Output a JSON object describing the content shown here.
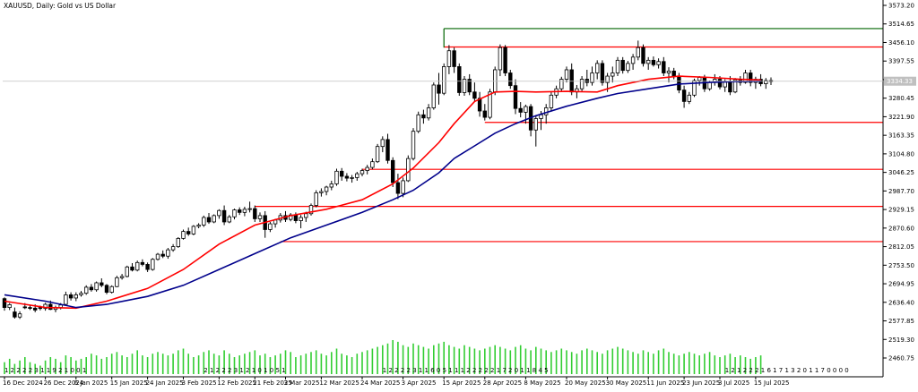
{
  "chart_data": {
    "type": "candlestick",
    "title": "XAUUSD, Daily:  Gold vs US Dollar",
    "current_price_label": "3334.33",
    "y_ticks": [
      "3573.20",
      "3514.65",
      "3456.10",
      "3397.55",
      "3339.00",
      "3280.45",
      "3221.90",
      "3163.35",
      "3104.80",
      "3046.25",
      "2987.70",
      "2929.15",
      "2870.60",
      "2812.05",
      "2753.50",
      "2694.95",
      "2636.40",
      "2577.85",
      "2519.30",
      "2460.75"
    ],
    "ylim": [
      2460.75,
      3573.2
    ],
    "x_labels": [
      {
        "label": "16 Dec 2024",
        "i": 0
      },
      {
        "label": "26 Dec 2024",
        "i": 8
      },
      {
        "label": "6 Jan 2025",
        "i": 14
      },
      {
        "label": "15 Jan 2025",
        "i": 21
      },
      {
        "label": "24 Jan 2025",
        "i": 28
      },
      {
        "label": "3 Feb 2025",
        "i": 35
      },
      {
        "label": "12 Feb 2025",
        "i": 42
      },
      {
        "label": "21 Feb 2025",
        "i": 49
      },
      {
        "label": "3 Mar 2025",
        "i": 55
      },
      {
        "label": "12 Mar 2025",
        "i": 62
      },
      {
        "label": "24 Mar 2025",
        "i": 70
      },
      {
        "label": "3 Apr 2025",
        "i": 78
      },
      {
        "label": "15 Apr 2025",
        "i": 86
      },
      {
        "label": "28 Apr 2025",
        "i": 94
      },
      {
        "label": "8 May 2025",
        "i": 102
      },
      {
        "label": "20 May 2025",
        "i": 110
      },
      {
        "label": "30 May 2025",
        "i": 118
      },
      {
        "label": "11 Jun 2025",
        "i": 126
      },
      {
        "label": "23 Jun 2025",
        "i": 133
      },
      {
        "label": "3 Jul 2025",
        "i": 140
      },
      {
        "label": "15 Jul 2025",
        "i": 147
      }
    ],
    "candles_ohlc": [
      [
        2648,
        2652,
        2610,
        2620
      ],
      [
        2620,
        2634,
        2612,
        2629
      ],
      [
        2606,
        2620,
        2585,
        2590
      ],
      [
        2590,
        2608,
        2584,
        2600
      ],
      [
        2622,
        2634,
        2615,
        2620
      ],
      [
        2620,
        2628,
        2612,
        2618
      ],
      [
        2618,
        2630,
        2605,
        2612
      ],
      [
        2620,
        2626,
        2611,
        2617
      ],
      [
        2617,
        2635,
        2610,
        2630
      ],
      [
        2630,
        2642,
        2612,
        2614
      ],
      [
        2614,
        2626,
        2605,
        2620
      ],
      [
        2620,
        2634,
        2614,
        2628
      ],
      [
        2630,
        2670,
        2626,
        2660
      ],
      [
        2660,
        2668,
        2642,
        2650
      ],
      [
        2650,
        2668,
        2640,
        2660
      ],
      [
        2660,
        2672,
        2654,
        2665
      ],
      [
        2665,
        2690,
        2660,
        2684
      ],
      [
        2684,
        2694,
        2670,
        2676
      ],
      [
        2676,
        2702,
        2670,
        2698
      ],
      [
        2698,
        2712,
        2684,
        2690
      ],
      [
        2690,
        2694,
        2662,
        2668
      ],
      [
        2668,
        2690,
        2664,
        2686
      ],
      [
        2686,
        2720,
        2684,
        2714
      ],
      [
        2714,
        2726,
        2708,
        2718
      ],
      [
        2718,
        2752,
        2715,
        2748
      ],
      [
        2748,
        2760,
        2734,
        2738
      ],
      [
        2738,
        2768,
        2734,
        2762
      ],
      [
        2762,
        2772,
        2750,
        2756
      ],
      [
        2756,
        2762,
        2732,
        2740
      ],
      [
        2740,
        2776,
        2736,
        2772
      ],
      [
        2772,
        2792,
        2768,
        2788
      ],
      [
        2788,
        2800,
        2776,
        2782
      ],
      [
        2782,
        2808,
        2774,
        2802
      ],
      [
        2802,
        2820,
        2796,
        2812
      ],
      [
        2812,
        2842,
        2808,
        2838
      ],
      [
        2838,
        2866,
        2834,
        2860
      ],
      [
        2860,
        2872,
        2846,
        2852
      ],
      [
        2852,
        2880,
        2848,
        2876
      ],
      [
        2876,
        2886,
        2870,
        2880
      ],
      [
        2880,
        2910,
        2874,
        2904
      ],
      [
        2904,
        2918,
        2884,
        2890
      ],
      [
        2890,
        2914,
        2886,
        2910
      ],
      [
        2910,
        2930,
        2900,
        2926
      ],
      [
        2926,
        2942,
        2880,
        2890
      ],
      [
        2890,
        2912,
        2886,
        2906
      ],
      [
        2906,
        2932,
        2898,
        2928
      ],
      [
        2928,
        2936,
        2912,
        2920
      ],
      [
        2920,
        2938,
        2908,
        2930
      ],
      [
        2930,
        2954,
        2920,
        2932
      ],
      [
        2932,
        2942,
        2890,
        2900
      ],
      [
        2900,
        2920,
        2890,
        2910
      ],
      [
        2910,
        2924,
        2840,
        2866
      ],
      [
        2866,
        2890,
        2858,
        2884
      ],
      [
        2884,
        2900,
        2872,
        2896
      ],
      [
        2896,
        2918,
        2888,
        2910
      ],
      [
        2910,
        2924,
        2890,
        2898
      ],
      [
        2898,
        2918,
        2892,
        2912
      ],
      [
        2912,
        2920,
        2886,
        2894
      ],
      [
        2894,
        2912,
        2870,
        2904
      ],
      [
        2904,
        2922,
        2890,
        2916
      ],
      [
        2916,
        2948,
        2910,
        2942
      ],
      [
        2942,
        2990,
        2936,
        2982
      ],
      [
        2982,
        2996,
        2970,
        2986
      ],
      [
        2986,
        3004,
        2974,
        3000
      ],
      [
        3000,
        3020,
        2990,
        3010
      ],
      [
        3010,
        3058,
        3004,
        3050
      ],
      [
        3050,
        3060,
        3020,
        3034
      ],
      [
        3034,
        3044,
        3018,
        3028
      ],
      [
        3028,
        3038,
        3014,
        3030
      ],
      [
        3030,
        3048,
        3020,
        3042
      ],
      [
        3042,
        3058,
        3034,
        3052
      ],
      [
        3052,
        3070,
        3040,
        3062
      ],
      [
        3062,
        3090,
        3056,
        3080
      ],
      [
        3080,
        3136,
        3076,
        3128
      ],
      [
        3128,
        3160,
        3110,
        3150
      ],
      [
        3150,
        3168,
        3074,
        3084
      ],
      [
        3084,
        3094,
        3000,
        3014
      ],
      [
        3014,
        3042,
        2962,
        2980
      ],
      [
        2980,
        3030,
        2968,
        3020
      ],
      [
        3020,
        3100,
        3016,
        3090
      ],
      [
        3090,
        3186,
        3084,
        3176
      ],
      [
        3176,
        3238,
        3170,
        3228
      ],
      [
        3228,
        3244,
        3200,
        3218
      ],
      [
        3218,
        3262,
        3210,
        3250
      ],
      [
        3250,
        3330,
        3244,
        3322
      ],
      [
        3322,
        3360,
        3260,
        3296
      ],
      [
        3296,
        3390,
        3290,
        3380
      ],
      [
        3380,
        3448,
        3356,
        3430
      ],
      [
        3430,
        3440,
        3360,
        3380
      ],
      [
        3380,
        3390,
        3288,
        3298
      ],
      [
        3298,
        3350,
        3288,
        3340
      ],
      [
        3340,
        3356,
        3290,
        3300
      ],
      [
        3300,
        3330,
        3270,
        3280
      ],
      [
        3280,
        3300,
        3222,
        3240
      ],
      [
        3240,
        3262,
        3210,
        3220
      ],
      [
        3220,
        3310,
        3214,
        3300
      ],
      [
        3300,
        3380,
        3290,
        3370
      ],
      [
        3370,
        3450,
        3350,
        3440
      ],
      [
        3440,
        3448,
        3350,
        3360
      ],
      [
        3360,
        3370,
        3310,
        3320
      ],
      [
        3320,
        3340,
        3230,
        3248
      ],
      [
        3248,
        3268,
        3220,
        3236
      ],
      [
        3236,
        3260,
        3200,
        3254
      ],
      [
        3254,
        3262,
        3160,
        3180
      ],
      [
        3180,
        3226,
        3128,
        3216
      ],
      [
        3216,
        3240,
        3180,
        3228
      ],
      [
        3228,
        3262,
        3200,
        3250
      ],
      [
        3250,
        3300,
        3238,
        3290
      ],
      [
        3290,
        3320,
        3280,
        3310
      ],
      [
        3310,
        3348,
        3300,
        3340
      ],
      [
        3340,
        3380,
        3330,
        3370
      ],
      [
        3370,
        3390,
        3290,
        3300
      ],
      [
        3300,
        3322,
        3280,
        3310
      ],
      [
        3310,
        3350,
        3300,
        3340
      ],
      [
        3340,
        3370,
        3318,
        3330
      ],
      [
        3330,
        3380,
        3320,
        3360
      ],
      [
        3360,
        3400,
        3340,
        3390
      ],
      [
        3390,
        3400,
        3320,
        3330
      ],
      [
        3330,
        3360,
        3300,
        3350
      ],
      [
        3350,
        3380,
        3330,
        3360
      ],
      [
        3360,
        3410,
        3350,
        3400
      ],
      [
        3400,
        3410,
        3358,
        3368
      ],
      [
        3368,
        3398,
        3360,
        3390
      ],
      [
        3390,
        3420,
        3370,
        3410
      ],
      [
        3410,
        3462,
        3400,
        3440
      ],
      [
        3440,
        3450,
        3380,
        3390
      ],
      [
        3390,
        3410,
        3370,
        3400
      ],
      [
        3400,
        3412,
        3380,
        3386
      ],
      [
        3386,
        3406,
        3374,
        3396
      ],
      [
        3396,
        3410,
        3350,
        3360
      ],
      [
        3360,
        3378,
        3330,
        3366
      ],
      [
        3366,
        3376,
        3340,
        3350
      ],
      [
        3350,
        3360,
        3296,
        3306
      ],
      [
        3306,
        3320,
        3250,
        3270
      ],
      [
        3270,
        3300,
        3262,
        3290
      ],
      [
        3290,
        3342,
        3284,
        3336
      ],
      [
        3336,
        3350,
        3320,
        3346
      ],
      [
        3346,
        3354,
        3300,
        3310
      ],
      [
        3310,
        3336,
        3304,
        3330
      ],
      [
        3330,
        3356,
        3320,
        3340
      ],
      [
        3340,
        3350,
        3308,
        3316
      ],
      [
        3316,
        3340,
        3300,
        3334
      ],
      [
        3334,
        3350,
        3290,
        3300
      ],
      [
        3300,
        3344,
        3296,
        3338
      ],
      [
        3338,
        3350,
        3320,
        3330
      ],
      [
        3330,
        3370,
        3326,
        3360
      ],
      [
        3360,
        3370,
        3318,
        3330
      ],
      [
        3330,
        3348,
        3310,
        3340
      ],
      [
        3340,
        3356,
        3318,
        3326
      ],
      [
        3326,
        3344,
        3310,
        3336
      ],
      [
        3336,
        3346,
        3322,
        3334
      ]
    ],
    "series": [
      {
        "name": "",
        "color": "#ff0000",
        "x": [
          0,
          8,
          14,
          20,
          28,
          35,
          42,
          49,
          56,
          63,
          70,
          76,
          80,
          85,
          88,
          92,
          96,
          100,
          104,
          110,
          116,
          120,
          126,
          132,
          138,
          144,
          148
        ],
        "values": [
          2640,
          2620,
          2618,
          2640,
          2680,
          2740,
          2820,
          2880,
          2910,
          2930,
          2960,
          3010,
          3060,
          3140,
          3200,
          3270,
          3300,
          3302,
          3300,
          3302,
          3300,
          3320,
          3340,
          3350,
          3346,
          3340,
          3338
        ]
      },
      {
        "name": "",
        "color": "#00008b",
        "x": [
          0,
          8,
          14,
          20,
          28,
          35,
          42,
          49,
          56,
          63,
          70,
          76,
          80,
          85,
          88,
          92,
          96,
          100,
          104,
          110,
          116,
          120,
          126,
          132,
          138,
          144,
          148
        ],
        "values": [
          2660,
          2640,
          2620,
          2630,
          2655,
          2690,
          2740,
          2790,
          2840,
          2880,
          2920,
          2960,
          2990,
          3045,
          3090,
          3130,
          3170,
          3200,
          3225,
          3255,
          3280,
          3295,
          3310,
          3325,
          3330,
          3333,
          3334
        ]
      }
    ],
    "hlines": [
      {
        "color": "#ff0000",
        "price": 3442,
        "start_i": 86
      },
      {
        "color": "#ff0000",
        "price": 3204,
        "start_i": 94
      },
      {
        "color": "#ff0000",
        "price": 3056,
        "start_i": 70
      },
      {
        "color": "#ff0000",
        "price": 2939,
        "start_i": 49
      },
      {
        "color": "#ff0000",
        "price": 2828,
        "start_i": 54
      },
      {
        "color": "#006400",
        "price": 3500,
        "start_i": 86,
        "vertical_to": 3440
      }
    ],
    "volume_color": "#32cd32",
    "volumes": [
      0.35,
      0.45,
      0.3,
      0.4,
      0.5,
      0.35,
      0.3,
      0.25,
      0.4,
      0.5,
      0.45,
      0.35,
      0.55,
      0.5,
      0.4,
      0.45,
      0.5,
      0.6,
      0.55,
      0.45,
      0.5,
      0.6,
      0.65,
      0.55,
      0.5,
      0.6,
      0.7,
      0.55,
      0.5,
      0.6,
      0.65,
      0.6,
      0.55,
      0.6,
      0.7,
      0.75,
      0.6,
      0.5,
      0.55,
      0.65,
      0.7,
      0.6,
      0.55,
      0.7,
      0.6,
      0.5,
      0.55,
      0.6,
      0.65,
      0.7,
      0.55,
      0.6,
      0.5,
      0.55,
      0.6,
      0.7,
      0.65,
      0.5,
      0.55,
      0.6,
      0.65,
      0.7,
      0.6,
      0.55,
      0.65,
      0.75,
      0.6,
      0.55,
      0.5,
      0.6,
      0.65,
      0.7,
      0.75,
      0.8,
      0.85,
      0.9,
      1.0,
      0.95,
      0.85,
      0.8,
      0.9,
      0.85,
      0.8,
      0.75,
      0.85,
      0.9,
      0.95,
      0.85,
      0.8,
      0.75,
      0.85,
      0.8,
      0.75,
      0.7,
      0.75,
      0.8,
      0.85,
      0.8,
      0.75,
      0.7,
      0.8,
      0.85,
      0.75,
      0.7,
      0.8,
      0.75,
      0.7,
      0.65,
      0.7,
      0.75,
      0.7,
      0.65,
      0.6,
      0.7,
      0.75,
      0.7,
      0.65,
      0.6,
      0.7,
      0.75,
      0.8,
      0.75,
      0.7,
      0.65,
      0.6,
      0.7,
      0.65,
      0.6,
      0.7,
      0.75,
      0.65,
      0.6,
      0.55,
      0.6,
      0.65,
      0.6,
      0.55,
      0.6,
      0.65,
      0.55,
      0.5,
      0.55,
      0.6,
      0.5,
      0.55,
      0.5,
      0.45,
      0.5,
      0.55
    ],
    "timeline_groups": [
      {
        "start_i": 0,
        "text": "1 2 2 2 2 3 1 1 9 2 1 0 0 1"
      },
      {
        "start_i": 39,
        "text": "2 1 2 2 2 3 1 2 1 0 1 0 5 1"
      },
      {
        "start_i": 74,
        "text": "1 2 2 2 2 3 1 1 6 0 5 1 1 1 2 2 2 2 2 1 7 2 0 1 1 8 4 5"
      },
      {
        "start_i": 141,
        "text": "1 2 1 2 2 2 1 6 1 7 1 3 2 0 1 1 7 0 0 0 0"
      }
    ]
  }
}
